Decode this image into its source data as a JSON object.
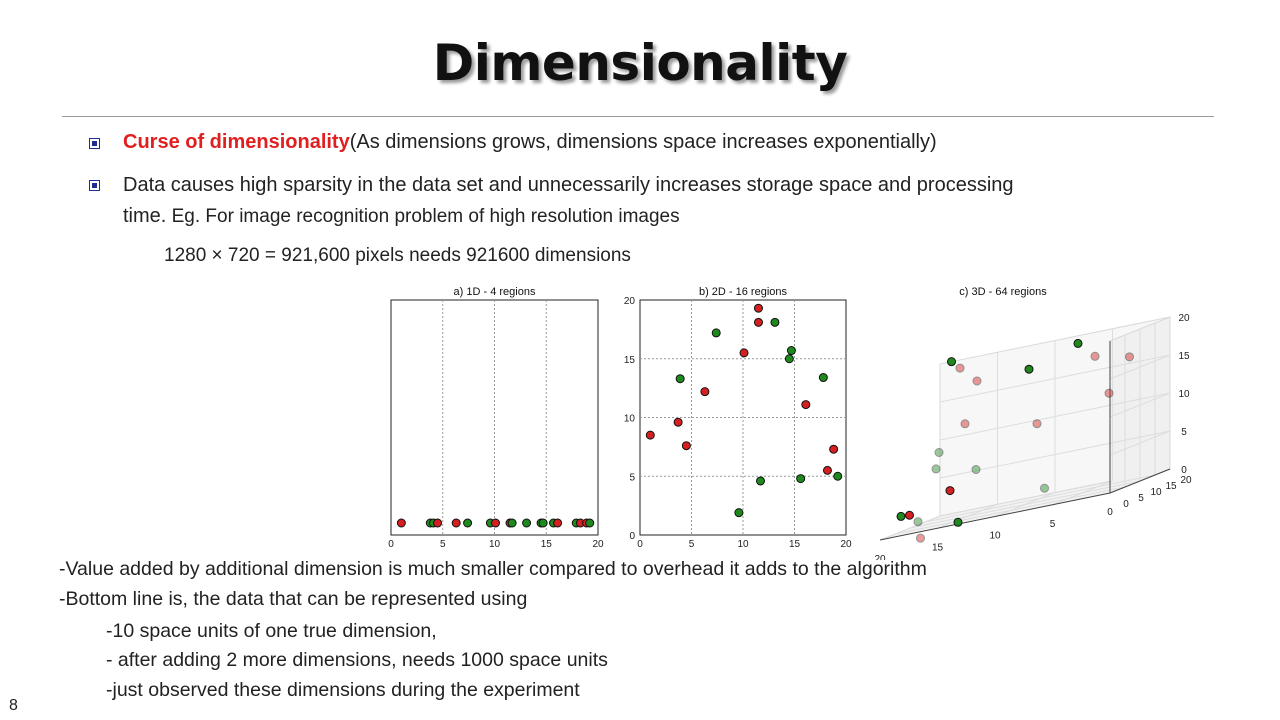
{
  "slide": {
    "title": "Dimensionality",
    "page_number": "8",
    "bullets": [
      {
        "highlight": "Curse of dimensionality",
        "text": "(As dimensions grows, dimensions space increases exponentially)"
      },
      {
        "line1": "Data causes high sparsity in the data set and unnecessarily increases storage space and processing",
        "line2_main": "time.",
        "line2_rest": " Eg. For image recognition problem of high resolution images"
      }
    ],
    "formula": "1280 × 720 = 921,600 pixels needs 921600 dimensions",
    "notes": [
      "-Value added by additional dimension is much smaller compared to overhead it adds to the algorithm",
      "-Bottom line is, the data that can be represented using",
      "-10 space units of one true dimension,",
      "- after adding 2 more dimensions, needs 1000 space units",
      "-just observed these dimensions during the experiment"
    ]
  },
  "colors": {
    "red": "#d42020",
    "green": "#1e8a1e",
    "bullet": "#1f2f8f",
    "highlight": "#e02020"
  },
  "chart_data": [
    {
      "type": "scatter",
      "title": "a) 1D - 4 regions",
      "xlim": [
        0,
        20
      ],
      "xticks": [
        0,
        5,
        10,
        15,
        20
      ],
      "grid": true,
      "points": [
        {
          "x": 1.0,
          "c": "red"
        },
        {
          "x": 3.8,
          "c": "green"
        },
        {
          "x": 4.1,
          "c": "green"
        },
        {
          "x": 4.5,
          "c": "red"
        },
        {
          "x": 6.3,
          "c": "red"
        },
        {
          "x": 7.4,
          "c": "green"
        },
        {
          "x": 9.6,
          "c": "green"
        },
        {
          "x": 10.1,
          "c": "red"
        },
        {
          "x": 11.5,
          "c": "red"
        },
        {
          "x": 11.7,
          "c": "green"
        },
        {
          "x": 13.1,
          "c": "green"
        },
        {
          "x": 14.5,
          "c": "green"
        },
        {
          "x": 14.7,
          "c": "green"
        },
        {
          "x": 15.7,
          "c": "green"
        },
        {
          "x": 16.1,
          "c": "red"
        },
        {
          "x": 17.9,
          "c": "green"
        },
        {
          "x": 18.3,
          "c": "red"
        },
        {
          "x": 18.9,
          "c": "red"
        },
        {
          "x": 19.2,
          "c": "green"
        }
      ]
    },
    {
      "type": "scatter",
      "title": "b) 2D - 16 regions",
      "xlim": [
        0,
        20
      ],
      "ylim": [
        0,
        20
      ],
      "xticks": [
        0,
        5,
        10,
        15,
        20
      ],
      "yticks": [
        0,
        5,
        10,
        15,
        20
      ],
      "grid": true,
      "points": [
        {
          "x": 1.0,
          "y": 8.5,
          "c": "red"
        },
        {
          "x": 3.7,
          "y": 9.6,
          "c": "red"
        },
        {
          "x": 3.9,
          "y": 13.3,
          "c": "green"
        },
        {
          "x": 4.5,
          "y": 7.6,
          "c": "red"
        },
        {
          "x": 6.3,
          "y": 12.2,
          "c": "red"
        },
        {
          "x": 7.4,
          "y": 17.2,
          "c": "green"
        },
        {
          "x": 9.6,
          "y": 1.9,
          "c": "green"
        },
        {
          "x": 10.1,
          "y": 15.5,
          "c": "red"
        },
        {
          "x": 11.5,
          "y": 19.3,
          "c": "red"
        },
        {
          "x": 11.5,
          "y": 18.1,
          "c": "red"
        },
        {
          "x": 11.7,
          "y": 4.6,
          "c": "green"
        },
        {
          "x": 13.1,
          "y": 18.1,
          "c": "green"
        },
        {
          "x": 14.5,
          "y": 15.0,
          "c": "green"
        },
        {
          "x": 14.7,
          "y": 15.7,
          "c": "green"
        },
        {
          "x": 15.6,
          "y": 4.8,
          "c": "green"
        },
        {
          "x": 16.1,
          "y": 11.1,
          "c": "red"
        },
        {
          "x": 17.8,
          "y": 13.4,
          "c": "green"
        },
        {
          "x": 18.2,
          "y": 5.5,
          "c": "red"
        },
        {
          "x": 18.8,
          "y": 7.3,
          "c": "red"
        },
        {
          "x": 19.2,
          "y": 5.0,
          "c": "green"
        }
      ]
    },
    {
      "type": "scatter",
      "title": "c) 3D - 64 regions",
      "xlim": [
        0,
        20
      ],
      "ylim": [
        0,
        20
      ],
      "zlim": [
        0,
        20
      ],
      "xticks": [
        0,
        5,
        10,
        15,
        20
      ],
      "yticks": [
        0,
        5,
        10,
        15,
        20
      ],
      "zticks": [
        0,
        5,
        10,
        15,
        20
      ],
      "grid": true,
      "points": [
        {
          "x": 3,
          "y": 18,
          "z": 16,
          "c": "red",
          "faded": true
        },
        {
          "x": 6,
          "y": 18,
          "z": 17,
          "c": "red",
          "faded": true
        },
        {
          "x": 8,
          "y": 20,
          "z": 19,
          "c": "green",
          "faded": false
        },
        {
          "x": 4,
          "y": 15,
          "z": 12,
          "c": "red",
          "faded": true
        },
        {
          "x": 12,
          "y": 19,
          "z": 17,
          "c": "green",
          "faded": false
        },
        {
          "x": 10,
          "y": 14,
          "z": 10,
          "c": "red",
          "faded": true
        },
        {
          "x": 16,
          "y": 17,
          "z": 17,
          "c": "red",
          "faded": true
        },
        {
          "x": 18,
          "y": 19,
          "z": 19,
          "c": "red",
          "faded": true
        },
        {
          "x": 19,
          "y": 20,
          "z": 20,
          "c": "green",
          "faded": false
        },
        {
          "x": 16,
          "y": 13,
          "z": 12,
          "c": "red",
          "faded": true
        },
        {
          "x": 14,
          "y": 9,
          "z": 6,
          "c": "green",
          "faded": true
        },
        {
          "x": 7,
          "y": 5,
          "z": 2,
          "c": "green",
          "faded": true
        },
        {
          "x": 16,
          "y": 8,
          "z": 4,
          "c": "red",
          "faded": false
        },
        {
          "x": 18,
          "y": 11,
          "z": 7,
          "c": "green",
          "faded": true
        },
        {
          "x": 18,
          "y": 12,
          "z": 9,
          "c": "green",
          "faded": true
        },
        {
          "x": 18,
          "y": 5,
          "z": 1,
          "c": "green",
          "faded": true
        },
        {
          "x": 19,
          "y": 6,
          "z": 2,
          "c": "red",
          "faded": false
        },
        {
          "x": 20,
          "y": 7,
          "z": 2,
          "c": "green",
          "faded": false
        },
        {
          "x": 14,
          "y": 3,
          "z": 0,
          "c": "green",
          "faded": false
        },
        {
          "x": 17,
          "y": 2,
          "z": -1,
          "c": "red",
          "faded": true
        }
      ]
    }
  ]
}
